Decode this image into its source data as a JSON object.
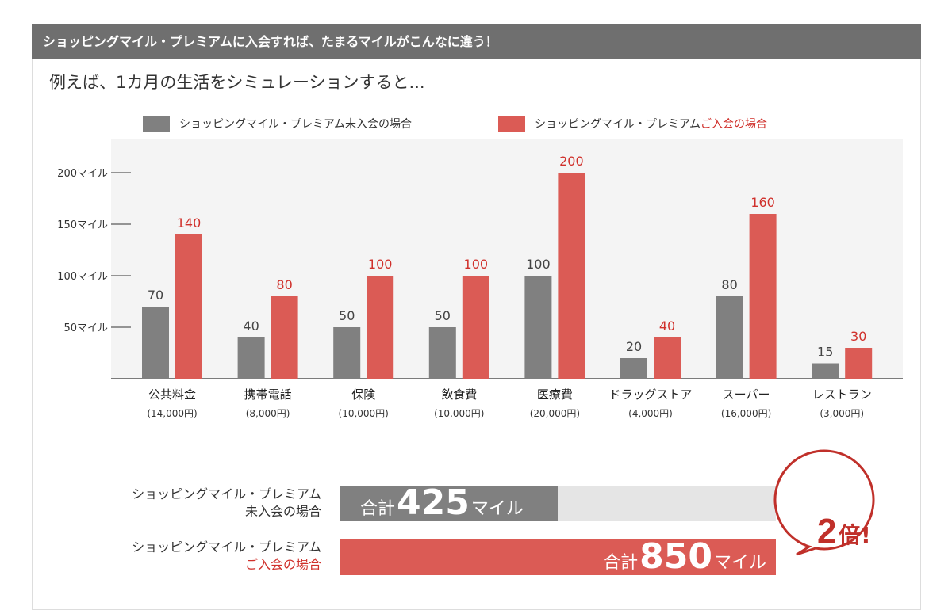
{
  "header": {
    "title": "ショッピングマイル・プレミアムに入会すれば、たまるマイルがこんなに違う！"
  },
  "subtitle": "例えば、1カ月の生活をシミュレーションすると...",
  "legend": {
    "nonmember": "ショッピングマイル・プレミアム未入会の場合",
    "member_prefix": "ショッピングマイル・プレミアム",
    "member_suffix": "ご入会の場合"
  },
  "colors": {
    "nonmember": "#808080",
    "member": "#db5b55",
    "accent_text": "#d0302b",
    "header_bg": "#6f6f6f"
  },
  "chart_data": {
    "type": "bar",
    "categories": [
      "公共料金",
      "携帯電話",
      "保険",
      "飲食費",
      "医療費",
      "ドラッグストア",
      "スーパー",
      "レストラン"
    ],
    "category_sublabels": [
      "(14,000円)",
      "(8,000円)",
      "(10,000円)",
      "(10,000円)",
      "(20,000円)",
      "(4,000円)",
      "(16,000円)",
      "(3,000円)"
    ],
    "series": [
      {
        "name": "ショッピングマイル・プレミアム未入会の場合",
        "values": [
          70,
          40,
          50,
          50,
          100,
          20,
          80,
          15
        ]
      },
      {
        "name": "ショッピングマイル・プレミアムご入会の場合",
        "values": [
          140,
          80,
          100,
          100,
          200,
          40,
          160,
          30
        ]
      }
    ],
    "yticks": [
      50,
      100,
      150,
      200
    ],
    "ytick_labels": [
      "50マイル",
      "100マイル",
      "150マイル",
      "200マイル"
    ],
    "ylim": [
      0,
      200
    ],
    "grid": false,
    "legend_position": "top"
  },
  "totals": {
    "nonmember": {
      "label1": "ショッピングマイル・プレミアム",
      "label2": "未入会の場合",
      "prefix": "合計",
      "value": "425",
      "unit": "マイル",
      "fraction": 0.5
    },
    "member": {
      "label1": "ショッピングマイル・プレミアム",
      "label2": "ご入会の場合",
      "prefix": "合計",
      "value": "850",
      "unit": "マイル",
      "fraction": 1.0
    },
    "badge_num": "2",
    "badge_text": "倍!"
  }
}
